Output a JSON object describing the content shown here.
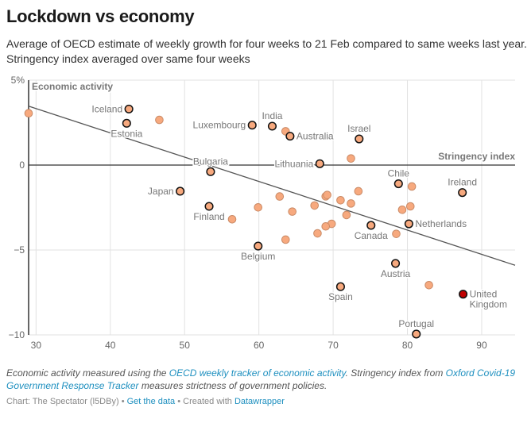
{
  "header": {
    "title": "Lockdown vs economy",
    "subtitle": "Average of OECD estimate of weekly growth for four weeks to 21 Feb compared to same weeks last year. Stringency index averaged over same four weeks"
  },
  "footer": {
    "notes_part1": "Economic activity measured using the ",
    "notes_link1": "OECD weekly tracker of economic activity",
    "notes_part2": ". Stringency index from ",
    "notes_link2": "Oxford Covid-19 Government Response Tracker",
    "notes_part3": " measures strictness of government policies.",
    "byline_source": "Chart: The Spectator (l5DBy)",
    "separator": " • ",
    "get_data_link": "Get the data",
    "created_with": "Created with ",
    "datawrapper_link": "Datawrapper"
  },
  "colors": {
    "point_fill": "#f7a97e",
    "point_highlight_fill": "#c00000",
    "line": "#555555",
    "link": "#1d8fbf"
  },
  "chart_data": {
    "type": "scatter",
    "title": "Lockdown vs economy",
    "xlabel": "Stringency index",
    "ylabel": "Economic activity",
    "xlim": [
      29,
      94.5
    ],
    "ylim": [
      -10,
      5
    ],
    "x_ticks": [
      30,
      40,
      50,
      60,
      70,
      80,
      90
    ],
    "x_tick_labels": [
      "30",
      "40",
      "50",
      "60",
      "70",
      "80",
      "90"
    ],
    "y_ticks": [
      5,
      0,
      -5,
      -10
    ],
    "y_tick_labels": [
      "5%",
      "0",
      "−5",
      "−10"
    ],
    "grid": true,
    "trendline": {
      "x": [
        29,
        94.5
      ],
      "y": [
        3.47,
        -5.9
      ]
    },
    "labeled_points": [
      {
        "name": "Iceland",
        "x": 42.5,
        "y": 3.3,
        "label_pos": "left"
      },
      {
        "name": "Estonia",
        "x": 42.2,
        "y": 2.46,
        "label_pos": "below"
      },
      {
        "name": "Luxembourg",
        "x": 59.1,
        "y": 2.35,
        "label_pos": "left"
      },
      {
        "name": "India",
        "x": 61.8,
        "y": 2.29,
        "label_pos": "above"
      },
      {
        "name": "Australia",
        "x": 64.2,
        "y": 1.7,
        "label_pos": "right"
      },
      {
        "name": "Israel",
        "x": 73.5,
        "y": 1.54,
        "label_pos": "above"
      },
      {
        "name": "Lithuania",
        "x": 68.2,
        "y": 0.08,
        "label_pos": "left"
      },
      {
        "name": "Bulgaria",
        "x": 53.5,
        "y": -0.39,
        "label_pos": "above"
      },
      {
        "name": "Japan",
        "x": 49.4,
        "y": -1.54,
        "label_pos": "left"
      },
      {
        "name": "Chile",
        "x": 78.8,
        "y": -1.1,
        "label_pos": "above"
      },
      {
        "name": "Ireland",
        "x": 87.4,
        "y": -1.62,
        "label_pos": "above"
      },
      {
        "name": "Finland",
        "x": 53.3,
        "y": -2.43,
        "label_pos": "below"
      },
      {
        "name": "Netherlands",
        "x": 80.2,
        "y": -3.46,
        "label_pos": "right"
      },
      {
        "name": "Canada",
        "x": 75.1,
        "y": -3.55,
        "label_pos": "below"
      },
      {
        "name": "Belgium",
        "x": 59.9,
        "y": -4.77,
        "label_pos": "below"
      },
      {
        "name": "Austria",
        "x": 78.4,
        "y": -5.79,
        "label_pos": "below"
      },
      {
        "name": "Spain",
        "x": 71.0,
        "y": -7.16,
        "label_pos": "below"
      },
      {
        "name": "United Kingdom",
        "x": 87.5,
        "y": -7.6,
        "label_pos": "right",
        "highlight": true
      },
      {
        "name": "Portugal",
        "x": 81.2,
        "y": -9.95,
        "label_pos": "above"
      }
    ],
    "unlabeled_points": [
      {
        "x": 29.0,
        "y": 3.05
      },
      {
        "x": 46.6,
        "y": 2.66
      },
      {
        "x": 63.6,
        "y": 1.99
      },
      {
        "x": 72.4,
        "y": 0.39
      },
      {
        "x": 80.6,
        "y": -1.26
      },
      {
        "x": 62.8,
        "y": -1.85
      },
      {
        "x": 69.0,
        "y": -1.84
      },
      {
        "x": 69.2,
        "y": -1.76
      },
      {
        "x": 73.4,
        "y": -1.54
      },
      {
        "x": 71.0,
        "y": -2.07
      },
      {
        "x": 72.4,
        "y": -2.26
      },
      {
        "x": 67.5,
        "y": -2.38
      },
      {
        "x": 59.9,
        "y": -2.49
      },
      {
        "x": 64.5,
        "y": -2.74
      },
      {
        "x": 71.8,
        "y": -2.94
      },
      {
        "x": 56.4,
        "y": -3.19
      },
      {
        "x": 69.8,
        "y": -3.46
      },
      {
        "x": 69.0,
        "y": -3.61
      },
      {
        "x": 67.9,
        "y": -4.02
      },
      {
        "x": 63.6,
        "y": -4.39
      },
      {
        "x": 78.5,
        "y": -4.05
      },
      {
        "x": 79.3,
        "y": -2.63
      },
      {
        "x": 80.4,
        "y": -2.43
      },
      {
        "x": 82.9,
        "y": -7.07
      }
    ]
  }
}
